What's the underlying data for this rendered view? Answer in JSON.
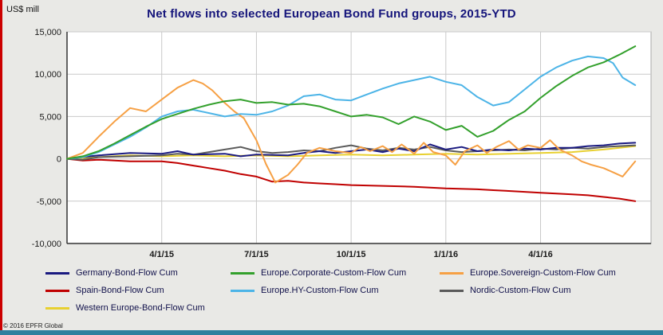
{
  "footer": {
    "copyright": "© 2016 EPFR Global"
  },
  "chart_data": {
    "type": "line",
    "title": "Net flows into selected European Bond Fund groups, 2015-YTD",
    "ylabel": "US$ mill",
    "xlabel": "",
    "x_unit": "months since 2015-01-01",
    "xlim": [
      0,
      18.5
    ],
    "ylim": [
      -10000,
      15000
    ],
    "grid": true,
    "legend_position": "bottom",
    "yticks": [
      -10000,
      -5000,
      0,
      5000,
      10000,
      15000
    ],
    "ytick_labels": [
      "-10,000",
      "-5,000",
      "0",
      "5,000",
      "10,000",
      "15,000"
    ],
    "xticks": [
      {
        "x": 3,
        "label": "4/1/15"
      },
      {
        "x": 6,
        "label": "7/1/15"
      },
      {
        "x": 9,
        "label": "10/1/15"
      },
      {
        "x": 12,
        "label": "1/1/16"
      },
      {
        "x": 15,
        "label": "4/1/16"
      }
    ],
    "series": [
      {
        "name": "Germany-Bond-Flow Cum",
        "color": "#1a1a80",
        "points": [
          [
            0,
            0
          ],
          [
            1,
            400
          ],
          [
            2,
            700
          ],
          [
            3,
            600
          ],
          [
            3.5,
            900
          ],
          [
            4,
            500
          ],
          [
            5,
            600
          ],
          [
            5.5,
            300
          ],
          [
            6,
            500
          ],
          [
            7,
            400
          ],
          [
            7.5,
            700
          ],
          [
            8,
            900
          ],
          [
            8.5,
            700
          ],
          [
            9,
            900
          ],
          [
            9.5,
            1100
          ],
          [
            10,
            800
          ],
          [
            10.5,
            1200
          ],
          [
            11,
            900
          ],
          [
            11.5,
            1700
          ],
          [
            12,
            1100
          ],
          [
            12.5,
            1400
          ],
          [
            13,
            900
          ],
          [
            13.5,
            1100
          ],
          [
            14,
            1000
          ],
          [
            14.5,
            1200
          ],
          [
            15,
            1100
          ],
          [
            15.5,
            1300
          ],
          [
            16,
            1300
          ],
          [
            16.5,
            1500
          ],
          [
            17,
            1600
          ],
          [
            17.5,
            1800
          ],
          [
            18,
            1900
          ]
        ]
      },
      {
        "name": "Europe.Corporate-Custom-Flow Cum",
        "color": "#33a02c",
        "points": [
          [
            0,
            0
          ],
          [
            0.5,
            300
          ],
          [
            1,
            900
          ],
          [
            1.5,
            1800
          ],
          [
            2,
            2800
          ],
          [
            2.5,
            3800
          ],
          [
            3,
            4700
          ],
          [
            3.5,
            5300
          ],
          [
            4,
            5900
          ],
          [
            4.5,
            6400
          ],
          [
            5,
            6800
          ],
          [
            5.5,
            7000
          ],
          [
            6,
            6600
          ],
          [
            6.5,
            6700
          ],
          [
            7,
            6400
          ],
          [
            7.5,
            6500
          ],
          [
            8,
            6200
          ],
          [
            8.5,
            5600
          ],
          [
            9,
            5000
          ],
          [
            9.5,
            5200
          ],
          [
            10,
            4900
          ],
          [
            10.5,
            4100
          ],
          [
            11,
            5000
          ],
          [
            11.5,
            4400
          ],
          [
            12,
            3400
          ],
          [
            12.5,
            3900
          ],
          [
            13,
            2600
          ],
          [
            13.5,
            3300
          ],
          [
            14,
            4600
          ],
          [
            14.5,
            5600
          ],
          [
            15,
            7200
          ],
          [
            15.5,
            8600
          ],
          [
            16,
            9800
          ],
          [
            16.5,
            10800
          ],
          [
            17,
            11400
          ],
          [
            17.5,
            12300
          ],
          [
            18,
            13300
          ]
        ]
      },
      {
        "name": "Europe.Sovereign-Custom-Flow Cum",
        "color": "#f6a044",
        "points": [
          [
            0,
            0
          ],
          [
            0.5,
            700
          ],
          [
            1,
            2600
          ],
          [
            1.5,
            4400
          ],
          [
            2,
            6000
          ],
          [
            2.5,
            5600
          ],
          [
            3,
            7000
          ],
          [
            3.5,
            8400
          ],
          [
            4,
            9300
          ],
          [
            4.3,
            8900
          ],
          [
            4.6,
            8100
          ],
          [
            5,
            6600
          ],
          [
            5.3,
            5600
          ],
          [
            5.6,
            4800
          ],
          [
            6,
            2200
          ],
          [
            6.3,
            -600
          ],
          [
            6.6,
            -2800
          ],
          [
            7,
            -1900
          ],
          [
            7.3,
            -700
          ],
          [
            7.6,
            700
          ],
          [
            8,
            1300
          ],
          [
            8.5,
            900
          ],
          [
            9,
            700
          ],
          [
            9.3,
            1400
          ],
          [
            9.6,
            900
          ],
          [
            10,
            1500
          ],
          [
            10.3,
            800
          ],
          [
            10.6,
            1700
          ],
          [
            11,
            600
          ],
          [
            11.3,
            1900
          ],
          [
            11.6,
            800
          ],
          [
            12,
            400
          ],
          [
            12.3,
            -700
          ],
          [
            12.6,
            900
          ],
          [
            13,
            1600
          ],
          [
            13.3,
            700
          ],
          [
            13.6,
            1400
          ],
          [
            14,
            2100
          ],
          [
            14.3,
            1100
          ],
          [
            14.6,
            1600
          ],
          [
            15,
            1300
          ],
          [
            15.3,
            2200
          ],
          [
            15.6,
            1100
          ],
          [
            16,
            400
          ],
          [
            16.3,
            -300
          ],
          [
            16.6,
            -700
          ],
          [
            17,
            -1100
          ],
          [
            17.3,
            -1600
          ],
          [
            17.6,
            -2100
          ],
          [
            18,
            -300
          ]
        ]
      },
      {
        "name": "Spain-Bond-Flow Cum",
        "color": "#c00000",
        "points": [
          [
            0,
            0
          ],
          [
            0.5,
            -200
          ],
          [
            1,
            -100
          ],
          [
            2,
            -300
          ],
          [
            3,
            -300
          ],
          [
            3.5,
            -500
          ],
          [
            4,
            -800
          ],
          [
            4.5,
            -1100
          ],
          [
            5,
            -1400
          ],
          [
            5.5,
            -1800
          ],
          [
            6,
            -2100
          ],
          [
            6.5,
            -2700
          ],
          [
            7,
            -2600
          ],
          [
            7.5,
            -2800
          ],
          [
            8,
            -2900
          ],
          [
            8.5,
            -3000
          ],
          [
            9,
            -3100
          ],
          [
            10,
            -3200
          ],
          [
            11,
            -3300
          ],
          [
            12,
            -3500
          ],
          [
            13,
            -3600
          ],
          [
            13.5,
            -3700
          ],
          [
            14,
            -3800
          ],
          [
            14.5,
            -3900
          ],
          [
            15,
            -4000
          ],
          [
            15.5,
            -4100
          ],
          [
            16,
            -4200
          ],
          [
            16.5,
            -4300
          ],
          [
            17,
            -4500
          ],
          [
            17.5,
            -4700
          ],
          [
            18,
            -5000
          ]
        ]
      },
      {
        "name": "Europe.HY-Custom-Flow Cum",
        "color": "#4cb4e7",
        "points": [
          [
            0,
            0
          ],
          [
            0.5,
            200
          ],
          [
            1,
            800
          ],
          [
            1.5,
            1700
          ],
          [
            2,
            2600
          ],
          [
            2.5,
            3700
          ],
          [
            3,
            5000
          ],
          [
            3.5,
            5600
          ],
          [
            4,
            5800
          ],
          [
            4.5,
            5400
          ],
          [
            5,
            5000
          ],
          [
            5.5,
            5300
          ],
          [
            6,
            5200
          ],
          [
            6.5,
            5600
          ],
          [
            7,
            6300
          ],
          [
            7.5,
            7400
          ],
          [
            8,
            7600
          ],
          [
            8.5,
            7000
          ],
          [
            9,
            6900
          ],
          [
            9.5,
            7600
          ],
          [
            10,
            8300
          ],
          [
            10.5,
            8900
          ],
          [
            11,
            9300
          ],
          [
            11.5,
            9700
          ],
          [
            12,
            9100
          ],
          [
            12.5,
            8700
          ],
          [
            13,
            7300
          ],
          [
            13.5,
            6300
          ],
          [
            14,
            6700
          ],
          [
            14.5,
            8200
          ],
          [
            15,
            9700
          ],
          [
            15.5,
            10800
          ],
          [
            16,
            11600
          ],
          [
            16.5,
            12100
          ],
          [
            17,
            11900
          ],
          [
            17.3,
            11300
          ],
          [
            17.6,
            9600
          ],
          [
            18,
            8700
          ]
        ]
      },
      {
        "name": "Nordic-Custom-Flow Cum",
        "color": "#5a5a5a",
        "points": [
          [
            0,
            0
          ],
          [
            0.5,
            -100
          ],
          [
            1,
            200
          ],
          [
            2,
            300
          ],
          [
            3,
            400
          ],
          [
            3.5,
            600
          ],
          [
            4,
            500
          ],
          [
            4.5,
            800
          ],
          [
            5,
            1100
          ],
          [
            5.5,
            1400
          ],
          [
            6,
            900
          ],
          [
            6.5,
            700
          ],
          [
            7,
            800
          ],
          [
            7.5,
            1000
          ],
          [
            8,
            900
          ],
          [
            8.5,
            1300
          ],
          [
            9,
            1600
          ],
          [
            9.5,
            1200
          ],
          [
            10,
            1000
          ],
          [
            10.5,
            1300
          ],
          [
            11,
            1100
          ],
          [
            11.5,
            1400
          ],
          [
            12,
            1000
          ],
          [
            12.5,
            800
          ],
          [
            13,
            900
          ],
          [
            13.5,
            1000
          ],
          [
            14,
            1100
          ],
          [
            14.5,
            1000
          ],
          [
            15,
            1200
          ],
          [
            15.5,
            1100
          ],
          [
            16,
            1300
          ],
          [
            16.5,
            1200
          ],
          [
            17,
            1400
          ],
          [
            17.5,
            1500
          ],
          [
            18,
            1600
          ]
        ]
      },
      {
        "name": "Western Europe-Bond-Flow Cum",
        "color": "#e8d030",
        "points": [
          [
            0,
            0
          ],
          [
            1,
            200
          ],
          [
            2,
            400
          ],
          [
            3,
            300
          ],
          [
            4,
            400
          ],
          [
            5,
            300
          ],
          [
            6,
            400
          ],
          [
            7,
            300
          ],
          [
            8,
            400
          ],
          [
            9,
            500
          ],
          [
            10,
            400
          ],
          [
            11,
            500
          ],
          [
            12,
            600
          ],
          [
            13,
            500
          ],
          [
            14,
            600
          ],
          [
            15,
            700
          ],
          [
            16,
            800
          ],
          [
            17,
            1100
          ],
          [
            17.5,
            1300
          ],
          [
            18,
            1500
          ]
        ]
      }
    ]
  }
}
